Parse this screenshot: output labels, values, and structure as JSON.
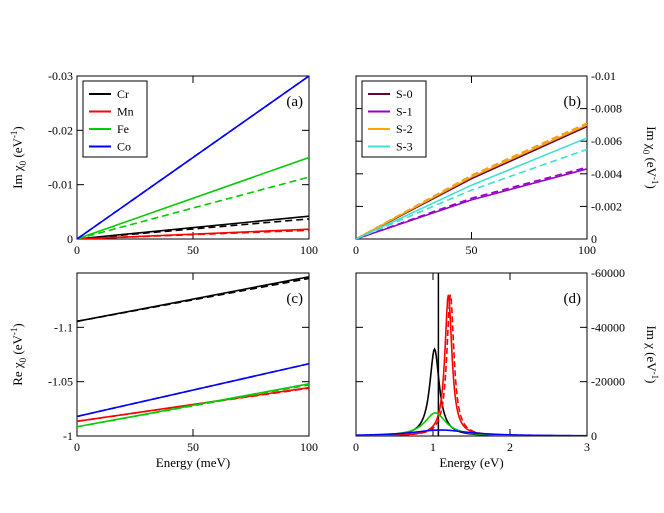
{
  "chart_data": [
    {
      "id": "a",
      "type": "line",
      "panel_label": "(a)",
      "ylabel": "Im χ",
      "ylabel_sub": "0",
      "ylabel_unit": " (eV",
      "ylabel_sup": "-1",
      "ylabel_close": ")",
      "xlim": [
        0,
        100
      ],
      "ylim": [
        0,
        -0.03
      ],
      "xticks": [
        0,
        50,
        100
      ],
      "xtick_labels": [
        "0",
        "50",
        "100"
      ],
      "yticks": [
        0,
        -0.01,
        -0.02,
        -0.03
      ],
      "ytick_labels": [
        "0",
        "-0.01",
        "-0.02",
        "-0.03"
      ],
      "legend_position": "top-left",
      "series": [
        {
          "name": "Cr",
          "color": "#000000",
          "x": [
            0,
            100
          ],
          "y": [
            0,
            -0.0042
          ],
          "dashed_x": [
            0,
            100
          ],
          "dashed_y": [
            0,
            -0.0037
          ]
        },
        {
          "name": "Mn",
          "color": "#ff0000",
          "x": [
            0,
            100
          ],
          "y": [
            0,
            -0.0018
          ],
          "dashed_x": [
            0,
            100
          ],
          "dashed_y": [
            0,
            -0.0016
          ]
        },
        {
          "name": "Fe",
          "color": "#00cc00",
          "x": [
            0,
            100
          ],
          "y": [
            0,
            -0.015
          ],
          "dashed_x": [
            0,
            100
          ],
          "dashed_y": [
            0,
            -0.0114
          ]
        },
        {
          "name": "Co",
          "color": "#0000ff",
          "x": [
            0,
            100
          ],
          "y": [
            0,
            -0.03
          ],
          "dashed_x": [
            0,
            100
          ],
          "dashed_y": [
            0,
            -0.03
          ]
        }
      ]
    },
    {
      "id": "b",
      "type": "line",
      "panel_label": "(b)",
      "ylabel": "Im χ",
      "ylabel_sub": "0",
      "ylabel_unit": " (eV",
      "ylabel_sup": "-1",
      "ylabel_close": ")",
      "ylabel_side": "right",
      "xlim": [
        0,
        100
      ],
      "ylim": [
        0,
        -0.01
      ],
      "xticks": [
        0,
        50,
        100
      ],
      "xtick_labels": [
        "0",
        "50",
        "100"
      ],
      "yticks": [
        0,
        -0.002,
        -0.004,
        -0.006,
        -0.008,
        -0.01
      ],
      "ytick_labels": [
        "0",
        "-0.002",
        "-0.004",
        "-0.006",
        "-0.008",
        "-0.01"
      ],
      "legend_position": "top-left",
      "series": [
        {
          "name": "S-0",
          "color": "#660033",
          "x": [
            0,
            50,
            100
          ],
          "y": [
            0,
            -0.0037,
            -0.0069
          ],
          "dashed_x": [
            0,
            50,
            100
          ],
          "dashed_y": [
            0,
            -0.0039,
            -0.0071
          ]
        },
        {
          "name": "S-1",
          "color": "#9900cc",
          "x": [
            0,
            50,
            100
          ],
          "y": [
            0,
            -0.0024,
            -0.0043
          ],
          "dashed_x": [
            0,
            50,
            100
          ],
          "dashed_y": [
            0,
            -0.0025,
            -0.0044
          ]
        },
        {
          "name": "S-2",
          "color": "#ffa500",
          "x": [
            0,
            50,
            100
          ],
          "y": [
            0,
            -0.0038,
            -0.007
          ],
          "dashed_x": [
            0,
            50,
            100
          ],
          "dashed_y": [
            0,
            -0.0039,
            -0.0071
          ]
        },
        {
          "name": "S-3",
          "color": "#40e0d0",
          "x": [
            0,
            50,
            100
          ],
          "y": [
            0,
            -0.0033,
            -0.0062
          ],
          "dashed_x": [
            0,
            50,
            100
          ],
          "dashed_y": [
            0,
            -0.003,
            -0.0055
          ]
        }
      ]
    },
    {
      "id": "c",
      "type": "line",
      "panel_label": "(c)",
      "ylabel": "Re χ",
      "ylabel_sub": "0",
      "ylabel_unit": " (eV",
      "ylabel_sup": "-1",
      "ylabel_close": ")",
      "xlabel": "Energy (meV)",
      "xlim": [
        0,
        100
      ],
      "ylim": [
        -1.0,
        -1.15
      ],
      "xticks": [
        0,
        50,
        100
      ],
      "xtick_labels": [
        "0",
        "50",
        "100"
      ],
      "yticks": [
        -1.0,
        -1.05,
        -1.1
      ],
      "ytick_labels": [
        "-1",
        "-1.05",
        "-1.1"
      ],
      "series": [
        {
          "name": "Cr",
          "color": "#000000",
          "x": [
            0,
            100
          ],
          "y": [
            -1.1055,
            -1.1465
          ],
          "dashed_x": [
            0,
            100
          ],
          "dashed_y": [
            -1.1055,
            -1.145
          ]
        },
        {
          "name": "Mn",
          "color": "#ff0000",
          "x": [
            0,
            100
          ],
          "y": [
            -1.0135,
            -1.0445
          ],
          "dashed_x": [
            0,
            100
          ],
          "dashed_y": [
            -1.0135,
            -1.044
          ]
        },
        {
          "name": "Fe",
          "color": "#00cc00",
          "x": [
            0,
            100
          ],
          "y": [
            -1.0085,
            -1.048
          ],
          "dashed_x": [
            0,
            100
          ],
          "dashed_y": [
            -1.0085,
            -1.047
          ]
        },
        {
          "name": "Co",
          "color": "#0000ff",
          "x": [
            0,
            100
          ],
          "y": [
            -1.018,
            -1.0665
          ],
          "dashed_x": [
            0,
            100
          ],
          "dashed_y": [
            -1.018,
            -1.0665
          ]
        }
      ]
    },
    {
      "id": "d",
      "type": "line",
      "panel_label": "(d)",
      "ylabel": "Im χ (eV",
      "ylabel_sup": "-1",
      "ylabel_close": ")",
      "ylabel_side": "right",
      "xlabel": "Energy (eV)",
      "xlim": [
        0,
        3
      ],
      "ylim": [
        0,
        -60000
      ],
      "xticks": [
        0,
        1,
        2,
        3
      ],
      "xtick_labels": [
        "0",
        "1",
        "2",
        "3"
      ],
      "yticks": [
        0,
        -20000,
        -40000,
        -60000
      ],
      "ytick_labels": [
        "0",
        "-20000",
        "-40000",
        "-60000"
      ],
      "series": [
        {
          "name": "Cr",
          "color": "#000000",
          "peak": [
            1.02,
            -32000
          ],
          "width": 0.075,
          "spike": [
            1.07,
            -60000
          ]
        },
        {
          "name": "Mn",
          "color": "#ff0000",
          "peak": [
            1.2,
            -52000
          ],
          "width": 0.055
        },
        {
          "name": "Fe",
          "color": "#00cc00",
          "peak": [
            1.03,
            -8500
          ],
          "width": 0.17
        },
        {
          "name": "Co",
          "color": "#0000ff",
          "peak": [
            1.1,
            -2200
          ],
          "width": 0.45
        }
      ]
    }
  ]
}
